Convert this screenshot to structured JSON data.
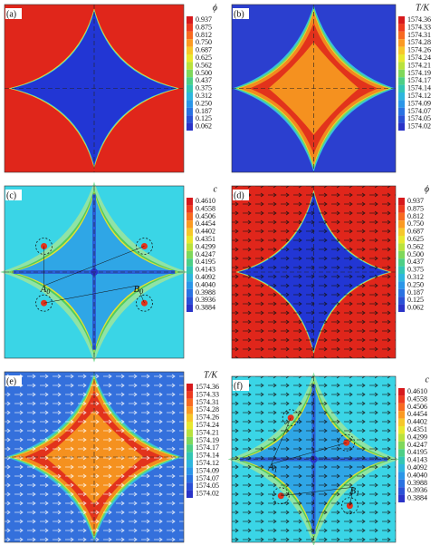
{
  "panels": [
    {
      "label": "(a)",
      "colorbar": {
        "title": "ϕ",
        "ticks": [
          "0.937",
          "0.875",
          "0.812",
          "0.750",
          "0.687",
          "0.625",
          "0.562",
          "0.500",
          "0.437",
          "0.375",
          "0.312",
          "0.250",
          "0.187",
          "0.125",
          "0.062"
        ]
      }
    },
    {
      "label": "(b)",
      "colorbar": {
        "title": "T/K",
        "ticks": [
          "1574.36",
          "1574.33",
          "1574.31",
          "1574.28",
          "1574.26",
          "1574.24",
          "1574.21",
          "1574.19",
          "1574.17",
          "1574.14",
          "1574.12",
          "1574.09",
          "1574.07",
          "1574.05",
          "1574.02"
        ]
      }
    },
    {
      "label": "(c)",
      "colorbar": {
        "title": "c",
        "ticks": [
          "0.4610",
          "0.4558",
          "0.4506",
          "0.4454",
          "0.4402",
          "0.4351",
          "0.4299",
          "0.4247",
          "0.4195",
          "0.4143",
          "0.4092",
          "0.4040",
          "0.3988",
          "0.3936",
          "0.3884"
        ]
      },
      "markers": [
        {
          "letter": "A",
          "sub": "0"
        },
        {
          "letter": "B",
          "sub": "0"
        }
      ]
    },
    {
      "label": "(d)",
      "colorbar": {
        "title": "ϕ",
        "ticks": [
          "0.937",
          "0.875",
          "0.812",
          "0.750",
          "0.687",
          "0.625",
          "0.562",
          "0.500",
          "0.437",
          "0.375",
          "0.312",
          "0.250",
          "0.187",
          "0.125",
          "0.062"
        ]
      }
    },
    {
      "label": "(e)",
      "colorbar": {
        "title": "T/K",
        "ticks": [
          "1574.36",
          "1574.33",
          "1574.31",
          "1574.28",
          "1574.26",
          "1574.24",
          "1574.21",
          "1574.19",
          "1574.17",
          "1574.14",
          "1574.12",
          "1574.09",
          "1574.07",
          "1574.05",
          "1574.02"
        ]
      }
    },
    {
      "label": "(f)",
      "colorbar": {
        "title": "c",
        "ticks": [
          "0.4610",
          "0.4558",
          "0.4506",
          "0.4454",
          "0.4402",
          "0.4351",
          "0.4299",
          "0.4247",
          "0.4195",
          "0.4143",
          "0.4092",
          "0.4040",
          "0.3988",
          "0.3936",
          "0.3884"
        ]
      },
      "markers": [
        {
          "letter": "A",
          "sub": "1"
        },
        {
          "letter": "B",
          "sub": "1"
        }
      ]
    }
  ]
}
